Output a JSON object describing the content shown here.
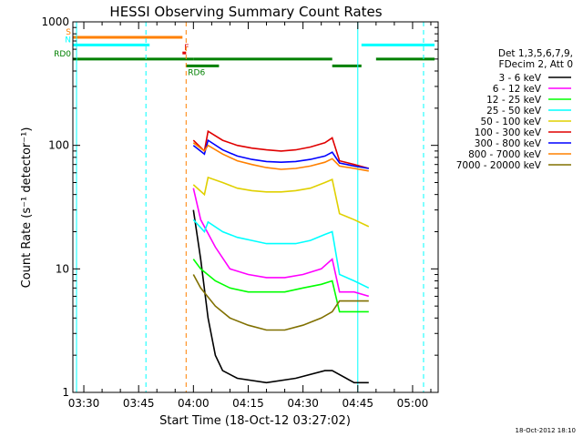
{
  "chart_data": {
    "type": "line",
    "title": "HESSI Observing Summary Count Rates",
    "xlabel": "Start Time (18-Oct-12 03:27:02)",
    "ylabel": "Count Rate (s⁻¹ detector⁻¹)",
    "yscale": "log",
    "ylim": [
      1,
      1000
    ],
    "xlim": [
      "03:27",
      "05:07"
    ],
    "x_ticks": [
      "03:30",
      "03:45",
      "04:00",
      "04:15",
      "04:30",
      "04:45",
      "05:00"
    ],
    "y_ticks": [
      "1",
      "10",
      "100",
      "1000"
    ],
    "timestamp": "18-Oct-2012 18:10",
    "legend_placement": "right",
    "legend_header": [
      "Det 1,3,5,6,7,9,",
      "FDecim 2, Att 0"
    ],
    "flags": [
      {
        "label": "S",
        "color": "#ff8000",
        "value": 750,
        "segments": [
          [
            "03:27",
            "03:57"
          ]
        ]
      },
      {
        "label": "N",
        "color": "#00ffff",
        "value": 650,
        "segments": [
          [
            "03:27",
            "03:48"
          ],
          [
            "04:46",
            "05:06"
          ]
        ]
      },
      {
        "label": "F",
        "color": "#e00000",
        "value": 560,
        "segments": [
          [
            "03:57",
            "03:58"
          ]
        ]
      },
      {
        "label": "RD0",
        "color": "#008000",
        "value": 500,
        "segments": [
          [
            "03:27",
            "04:00"
          ],
          [
            "04:00",
            "04:38"
          ],
          [
            "04:50",
            "05:06"
          ]
        ]
      },
      {
        "label": "RD6",
        "color": "#008000",
        "value": 440,
        "segments": [
          [
            "03:58",
            "04:07"
          ],
          [
            "04:38",
            "04:46"
          ]
        ]
      }
    ],
    "vlines": [
      {
        "time": "03:28",
        "color": "#00ffff",
        "style": "solid"
      },
      {
        "time": "03:47",
        "color": "#00ffff",
        "style": "dashed"
      },
      {
        "time": "03:58",
        "color": "#ff8000",
        "style": "dashed"
      },
      {
        "time": "04:45",
        "color": "#00ffff",
        "style": "solid"
      },
      {
        "time": "05:03",
        "color": "#00ffff",
        "style": "dashed"
      }
    ],
    "series": [
      {
        "name": "3 - 6 keV",
        "color": "#000000",
        "x": [
          "04:00",
          "04:02",
          "04:04",
          "04:06",
          "04:08",
          "04:12",
          "04:20",
          "04:28",
          "04:36",
          "04:38",
          "04:44",
          "04:48"
        ],
        "y": [
          30,
          12,
          4,
          2,
          1.5,
          1.3,
          1.2,
          1.3,
          1.5,
          1.5,
          1.2,
          1.2
        ]
      },
      {
        "name": "6 - 12 keV",
        "color": "#ff00ff",
        "x": [
          "04:00",
          "04:02",
          "04:06",
          "04:10",
          "04:15",
          "04:20",
          "04:25",
          "04:30",
          "04:35",
          "04:38",
          "04:40",
          "04:44",
          "04:48"
        ],
        "y": [
          45,
          25,
          15,
          10,
          9,
          8.5,
          8.5,
          9,
          10,
          12,
          6.5,
          6.5,
          6
        ]
      },
      {
        "name": "12 - 25 keV",
        "color": "#00ff00",
        "x": [
          "04:00",
          "04:02",
          "04:06",
          "04:10",
          "04:15",
          "04:20",
          "04:25",
          "04:30",
          "04:35",
          "04:38",
          "04:40",
          "04:44",
          "04:48"
        ],
        "y": [
          12,
          10,
          8,
          7,
          6.5,
          6.5,
          6.5,
          7,
          7.5,
          8,
          4.5,
          4.5,
          4.5
        ]
      },
      {
        "name": "25 - 50 keV",
        "color": "#00ffff",
        "x": [
          "04:00",
          "04:03",
          "04:04",
          "04:08",
          "04:12",
          "04:16",
          "04:20",
          "04:24",
          "04:28",
          "04:32",
          "04:36",
          "04:38",
          "04:40",
          "04:44",
          "04:48"
        ],
        "y": [
          25,
          20,
          24,
          20,
          18,
          17,
          16,
          16,
          16,
          17,
          19,
          20,
          9,
          8,
          7
        ]
      },
      {
        "name": "50 - 100 keV",
        "color": "#e0d000",
        "x": [
          "04:00",
          "04:03",
          "04:04",
          "04:08",
          "04:12",
          "04:16",
          "04:20",
          "04:24",
          "04:28",
          "04:32",
          "04:36",
          "04:38",
          "04:40",
          "04:44",
          "04:48"
        ],
        "y": [
          48,
          40,
          55,
          50,
          45,
          43,
          42,
          42,
          43,
          45,
          50,
          53,
          28,
          25,
          22
        ]
      },
      {
        "name": "100 - 300 keV",
        "color": "#e00000",
        "x": [
          "04:00",
          "04:03",
          "04:04",
          "04:08",
          "04:12",
          "04:16",
          "04:20",
          "04:24",
          "04:28",
          "04:32",
          "04:36",
          "04:38",
          "04:40",
          "04:44",
          "04:48"
        ],
        "y": [
          110,
          90,
          130,
          110,
          100,
          95,
          92,
          90,
          92,
          97,
          105,
          115,
          75,
          70,
          65
        ]
      },
      {
        "name": "300 - 800 keV",
        "color": "#0000ff",
        "x": [
          "04:00",
          "04:03",
          "04:04",
          "04:08",
          "04:12",
          "04:16",
          "04:20",
          "04:24",
          "04:28",
          "04:32",
          "04:36",
          "04:38",
          "04:40",
          "04:44",
          "04:48"
        ],
        "y": [
          100,
          85,
          110,
          92,
          82,
          77,
          74,
          73,
          74,
          77,
          82,
          88,
          72,
          68,
          65
        ]
      },
      {
        "name": "800 - 7000 keV",
        "color": "#ff8000",
        "x": [
          "04:00",
          "04:03",
          "04:04",
          "04:08",
          "04:12",
          "04:16",
          "04:20",
          "04:24",
          "04:28",
          "04:32",
          "04:36",
          "04:38",
          "04:40",
          "04:44",
          "04:48"
        ],
        "y": [
          105,
          90,
          100,
          85,
          75,
          70,
          66,
          64,
          65,
          68,
          73,
          78,
          68,
          65,
          62
        ]
      },
      {
        "name": "7000 - 20000 keV",
        "color": "#807000",
        "x": [
          "04:00",
          "04:02",
          "04:06",
          "04:10",
          "04:15",
          "04:20",
          "04:25",
          "04:30",
          "04:35",
          "04:38",
          "04:40",
          "04:44",
          "04:48"
        ],
        "y": [
          9,
          7,
          5,
          4,
          3.5,
          3.2,
          3.2,
          3.5,
          4,
          4.5,
          5.5,
          5.5,
          5.5
        ]
      }
    ]
  }
}
